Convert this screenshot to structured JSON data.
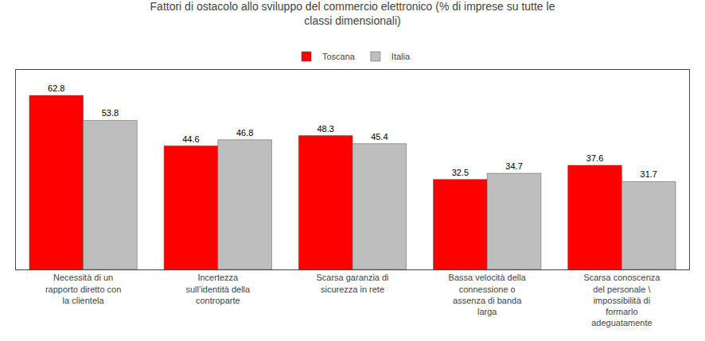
{
  "chart_data": {
    "type": "bar",
    "title": "Fattori di ostacolo allo sviluppo del commercio elettronico (% di imprese su tutte le\nclassi dimensionali)",
    "categories": [
      "Necessità di un\nrapporto diretto con\nla clientela",
      "Incertezza\nsull’identità della\ncontroparte",
      "Scarsa garanzia di\nsicurezza in rete",
      "Bassa velocità della\nconnessione o\nassenza di banda\nlarga",
      "Scarsa conoscenza\ndel personale \\\nimpossibilità di\nformarlo\nadeguatamente"
    ],
    "series": [
      {
        "name": "Toscana",
        "color": "#ff0000",
        "values": [
          62.8,
          44.6,
          48.3,
          32.5,
          37.6
        ]
      },
      {
        "name": "Italia",
        "color": "#bebebe",
        "values": [
          53.8,
          46.8,
          45.4,
          34.7,
          31.7
        ]
      }
    ],
    "ylim": [
      0,
      72
    ],
    "tick_labels": "x",
    "data_labels": true,
    "grid": false,
    "legend": "top"
  }
}
